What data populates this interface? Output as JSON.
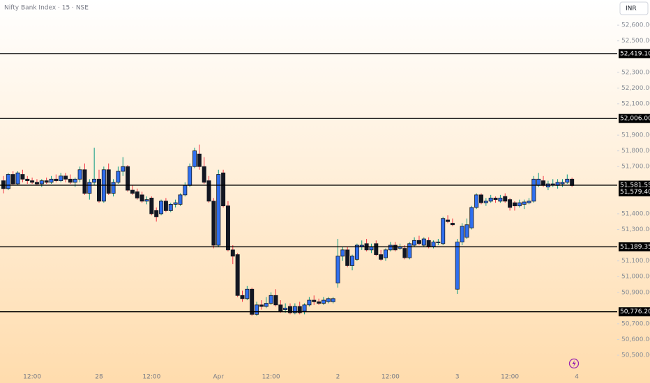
{
  "chart_data": {
    "type": "candlestick",
    "title": "Nifty Bank Index · 15 · NSE",
    "currency": "INR",
    "ylim": [
      50440,
      52760
    ],
    "yticks": [
      {
        "value": 50500,
        "label": "50,500.00"
      },
      {
        "value": 50600,
        "label": "50,600.00"
      },
      {
        "value": 50700,
        "label": "50,700.00"
      },
      {
        "value": 50900,
        "label": "50,900.00"
      },
      {
        "value": 51000,
        "label": "51,000.00"
      },
      {
        "value": 51100,
        "label": "51,100.00"
      },
      {
        "value": 51300,
        "label": "51,300.00"
      },
      {
        "value": 51400,
        "label": "51,400.00"
      },
      {
        "value": 51700,
        "label": "51,700.00"
      },
      {
        "value": 51800,
        "label": "51,800.00"
      },
      {
        "value": 51900,
        "label": "51,900.00"
      },
      {
        "value": 52100,
        "label": "52,100.00"
      },
      {
        "value": 52200,
        "label": "52,200.00"
      },
      {
        "value": 52300,
        "label": "52,300.00"
      },
      {
        "value": 52500,
        "label": "52,500.00"
      },
      {
        "value": 52600,
        "label": "52,600.00"
      }
    ],
    "levels": [
      {
        "value": 52419.1,
        "label": "52,419.10"
      },
      {
        "value": 52006,
        "label": "52,006.00"
      },
      {
        "value": 51581.55,
        "label": "51,581.55"
      },
      {
        "value": 51189.35,
        "label": "51,189.35"
      },
      {
        "value": 50776.2,
        "label": "50,776.20"
      }
    ],
    "last_price_label": "51,579.40",
    "up_color": "#2f6fef",
    "down_color": "#131722",
    "up_wick": "#089981",
    "down_wick": "#f23645",
    "categories": [
      null,
      null,
      null,
      null,
      null,
      null,
      "12:00",
      null,
      null,
      null,
      null,
      null,
      null,
      null,
      null,
      null,
      null,
      null,
      null,
      null,
      "28",
      null,
      null,
      null,
      null,
      null,
      null,
      null,
      null,
      null,
      null,
      "12:00",
      null,
      null,
      null,
      null,
      null,
      null,
      null,
      null,
      null,
      null,
      null,
      null,
      null,
      "Apr",
      null,
      null,
      null,
      null,
      null,
      null,
      null,
      null,
      null,
      null,
      "12:00",
      null,
      null,
      null,
      null,
      null,
      null,
      null,
      null,
      null,
      null,
      null,
      null,
      null,
      "2",
      null,
      null,
      null,
      null,
      null,
      null,
      null,
      null,
      null,
      null,
      "12:00",
      null,
      null,
      null,
      null,
      null,
      null,
      null,
      null,
      null,
      null,
      null,
      null,
      null,
      "3",
      null,
      null,
      null,
      null,
      null,
      null,
      null,
      null,
      null,
      null,
      "12:00",
      null,
      null,
      null,
      null,
      null,
      null,
      null,
      null,
      null,
      null,
      null,
      null,
      null,
      "4"
    ],
    "candles": [
      [
        51610,
        51640,
        51530,
        51560
      ],
      [
        51560,
        51660,
        51550,
        51650
      ],
      [
        51650,
        51670,
        51580,
        51590
      ],
      [
        51590,
        51670,
        51580,
        51660
      ],
      [
        51650,
        51680,
        51600,
        51620
      ],
      [
        51620,
        51640,
        51590,
        51610
      ],
      [
        51610,
        51630,
        51590,
        51600
      ],
      [
        51600,
        51620,
        51580,
        51590
      ],
      [
        51590,
        51620,
        51570,
        51610
      ],
      [
        51610,
        51630,
        51590,
        51600
      ],
      [
        51600,
        51640,
        51590,
        51620
      ],
      [
        51620,
        51650,
        51600,
        51610
      ],
      [
        51610,
        51660,
        51600,
        51640
      ],
      [
        51640,
        51660,
        51600,
        51620
      ],
      [
        51620,
        51650,
        51590,
        51600
      ],
      [
        51600,
        51630,
        51570,
        51620
      ],
      [
        51620,
        51700,
        51600,
        51680
      ],
      [
        51680,
        51720,
        51520,
        51530
      ],
      [
        51530,
        51620,
        51490,
        51600
      ],
      [
        51600,
        51820,
        51580,
        51620
      ],
      [
        51620,
        51680,
        51470,
        51480
      ],
      [
        51480,
        51700,
        51470,
        51680
      ],
      [
        51680,
        51720,
        51520,
        51530
      ],
      [
        51530,
        51620,
        51510,
        51600
      ],
      [
        51600,
        51700,
        51590,
        51670
      ],
      [
        51670,
        51760,
        51640,
        51700
      ],
      [
        51700,
        51710,
        51540,
        51550
      ],
      [
        51550,
        51580,
        51520,
        51530
      ],
      [
        51540,
        51560,
        51490,
        51500
      ],
      [
        51520,
        51540,
        51470,
        51480
      ],
      [
        51480,
        51510,
        51460,
        51490
      ],
      [
        51500,
        51510,
        51390,
        51400
      ],
      [
        51420,
        51440,
        51350,
        51380
      ],
      [
        51400,
        51490,
        51390,
        51480
      ],
      [
        51480,
        51500,
        51410,
        51420
      ],
      [
        51420,
        51470,
        51410,
        51460
      ],
      [
        51460,
        51490,
        51440,
        51470
      ],
      [
        51460,
        51530,
        51450,
        51520
      ],
      [
        51520,
        51600,
        51510,
        51580
      ],
      [
        51580,
        51720,
        51570,
        51700
      ],
      [
        51700,
        51820,
        51690,
        51800
      ],
      [
        51780,
        51840,
        51680,
        51700
      ],
      [
        51700,
        51760,
        51590,
        51600
      ],
      [
        51610,
        51640,
        51470,
        51480
      ],
      [
        51480,
        51500,
        51180,
        51200
      ],
      [
        51200,
        51680,
        51190,
        51650
      ],
      [
        51660,
        51680,
        51440,
        51450
      ],
      [
        51450,
        51480,
        51160,
        51170
      ],
      [
        51170,
        51200,
        51080,
        51130
      ],
      [
        51140,
        51150,
        50870,
        50880
      ],
      [
        50880,
        50910,
        50840,
        50860
      ],
      [
        50860,
        50940,
        50850,
        50920
      ],
      [
        50920,
        50930,
        50750,
        50760
      ],
      [
        50760,
        50840,
        50750,
        50820
      ],
      [
        50820,
        50850,
        50790,
        50810
      ],
      [
        50810,
        50870,
        50800,
        50830
      ],
      [
        50830,
        50900,
        50820,
        50880
      ],
      [
        50880,
        50920,
        50810,
        50820
      ],
      [
        50820,
        50850,
        50770,
        50780
      ],
      [
        50790,
        50830,
        50770,
        50800
      ],
      [
        50810,
        50830,
        50760,
        50770
      ],
      [
        50770,
        50830,
        50760,
        50810
      ],
      [
        50810,
        50840,
        50760,
        50770
      ],
      [
        50780,
        50830,
        50760,
        50820
      ],
      [
        50820,
        50870,
        50810,
        50850
      ],
      [
        50850,
        50880,
        50820,
        50840
      ],
      [
        50840,
        50860,
        50820,
        50830
      ],
      [
        50830,
        50870,
        50820,
        50850
      ],
      [
        50840,
        50870,
        50830,
        50860
      ],
      [
        50840,
        50870,
        50830,
        50860
      ],
      [
        50960,
        51240,
        50930,
        51130
      ],
      [
        51130,
        51190,
        51100,
        51170
      ],
      [
        51170,
        51190,
        51060,
        51070
      ],
      [
        51070,
        51140,
        51040,
        51130
      ],
      [
        51110,
        51210,
        51100,
        51200
      ],
      [
        51190,
        51230,
        51170,
        51200
      ],
      [
        51210,
        51240,
        51160,
        51170
      ],
      [
        51170,
        51210,
        51150,
        51190
      ],
      [
        51210,
        51230,
        51130,
        51140
      ],
      [
        51140,
        51170,
        51100,
        51110
      ],
      [
        51120,
        51180,
        51100,
        51170
      ],
      [
        51170,
        51220,
        51160,
        51200
      ],
      [
        51200,
        51220,
        51160,
        51170
      ],
      [
        51180,
        51210,
        51170,
        51190
      ],
      [
        51180,
        51200,
        51110,
        51120
      ],
      [
        51120,
        51220,
        51110,
        51210
      ],
      [
        51200,
        51250,
        51190,
        51230
      ],
      [
        51230,
        51260,
        51200,
        51210
      ],
      [
        51200,
        51250,
        51190,
        51240
      ],
      [
        51230,
        51250,
        51180,
        51190
      ],
      [
        51190,
        51230,
        51180,
        51220
      ],
      [
        51220,
        51240,
        51200,
        51220
      ],
      [
        51210,
        51380,
        51200,
        51370
      ],
      [
        51360,
        51390,
        51340,
        51350
      ],
      [
        51340,
        51370,
        51320,
        51330
      ],
      [
        50920,
        51240,
        50890,
        51220
      ],
      [
        51220,
        51340,
        51200,
        51320
      ],
      [
        51250,
        51370,
        51240,
        51330
      ],
      [
        51310,
        51450,
        51300,
        51440
      ],
      [
        51440,
        51530,
        51430,
        51520
      ],
      [
        51520,
        51530,
        51460,
        51470
      ],
      [
        51470,
        51500,
        51450,
        51480
      ],
      [
        51480,
        51520,
        51470,
        51500
      ],
      [
        51500,
        51510,
        51470,
        51490
      ],
      [
        51480,
        51520,
        51470,
        51500
      ],
      [
        51510,
        51530,
        51470,
        51480
      ],
      [
        51490,
        51500,
        51420,
        51440
      ],
      [
        51470,
        51480,
        51420,
        51450
      ],
      [
        51450,
        51490,
        51440,
        51470
      ],
      [
        51460,
        51490,
        51430,
        51475
      ],
      [
        51470,
        51500,
        51460,
        51480
      ],
      [
        51480,
        51640,
        51470,
        51620
      ],
      [
        51580,
        51660,
        51570,
        51620
      ],
      [
        51610,
        51640,
        51570,
        51580
      ],
      [
        51570,
        51610,
        51550,
        51590
      ],
      [
        51590,
        51620,
        51570,
        51590
      ],
      [
        51580,
        51620,
        51560,
        51600
      ],
      [
        51590,
        51620,
        51570,
        51600
      ],
      [
        51600,
        51650,
        51590,
        51620
      ],
      [
        51620,
        51630,
        51570,
        51579.4
      ],
      null
    ]
  }
}
